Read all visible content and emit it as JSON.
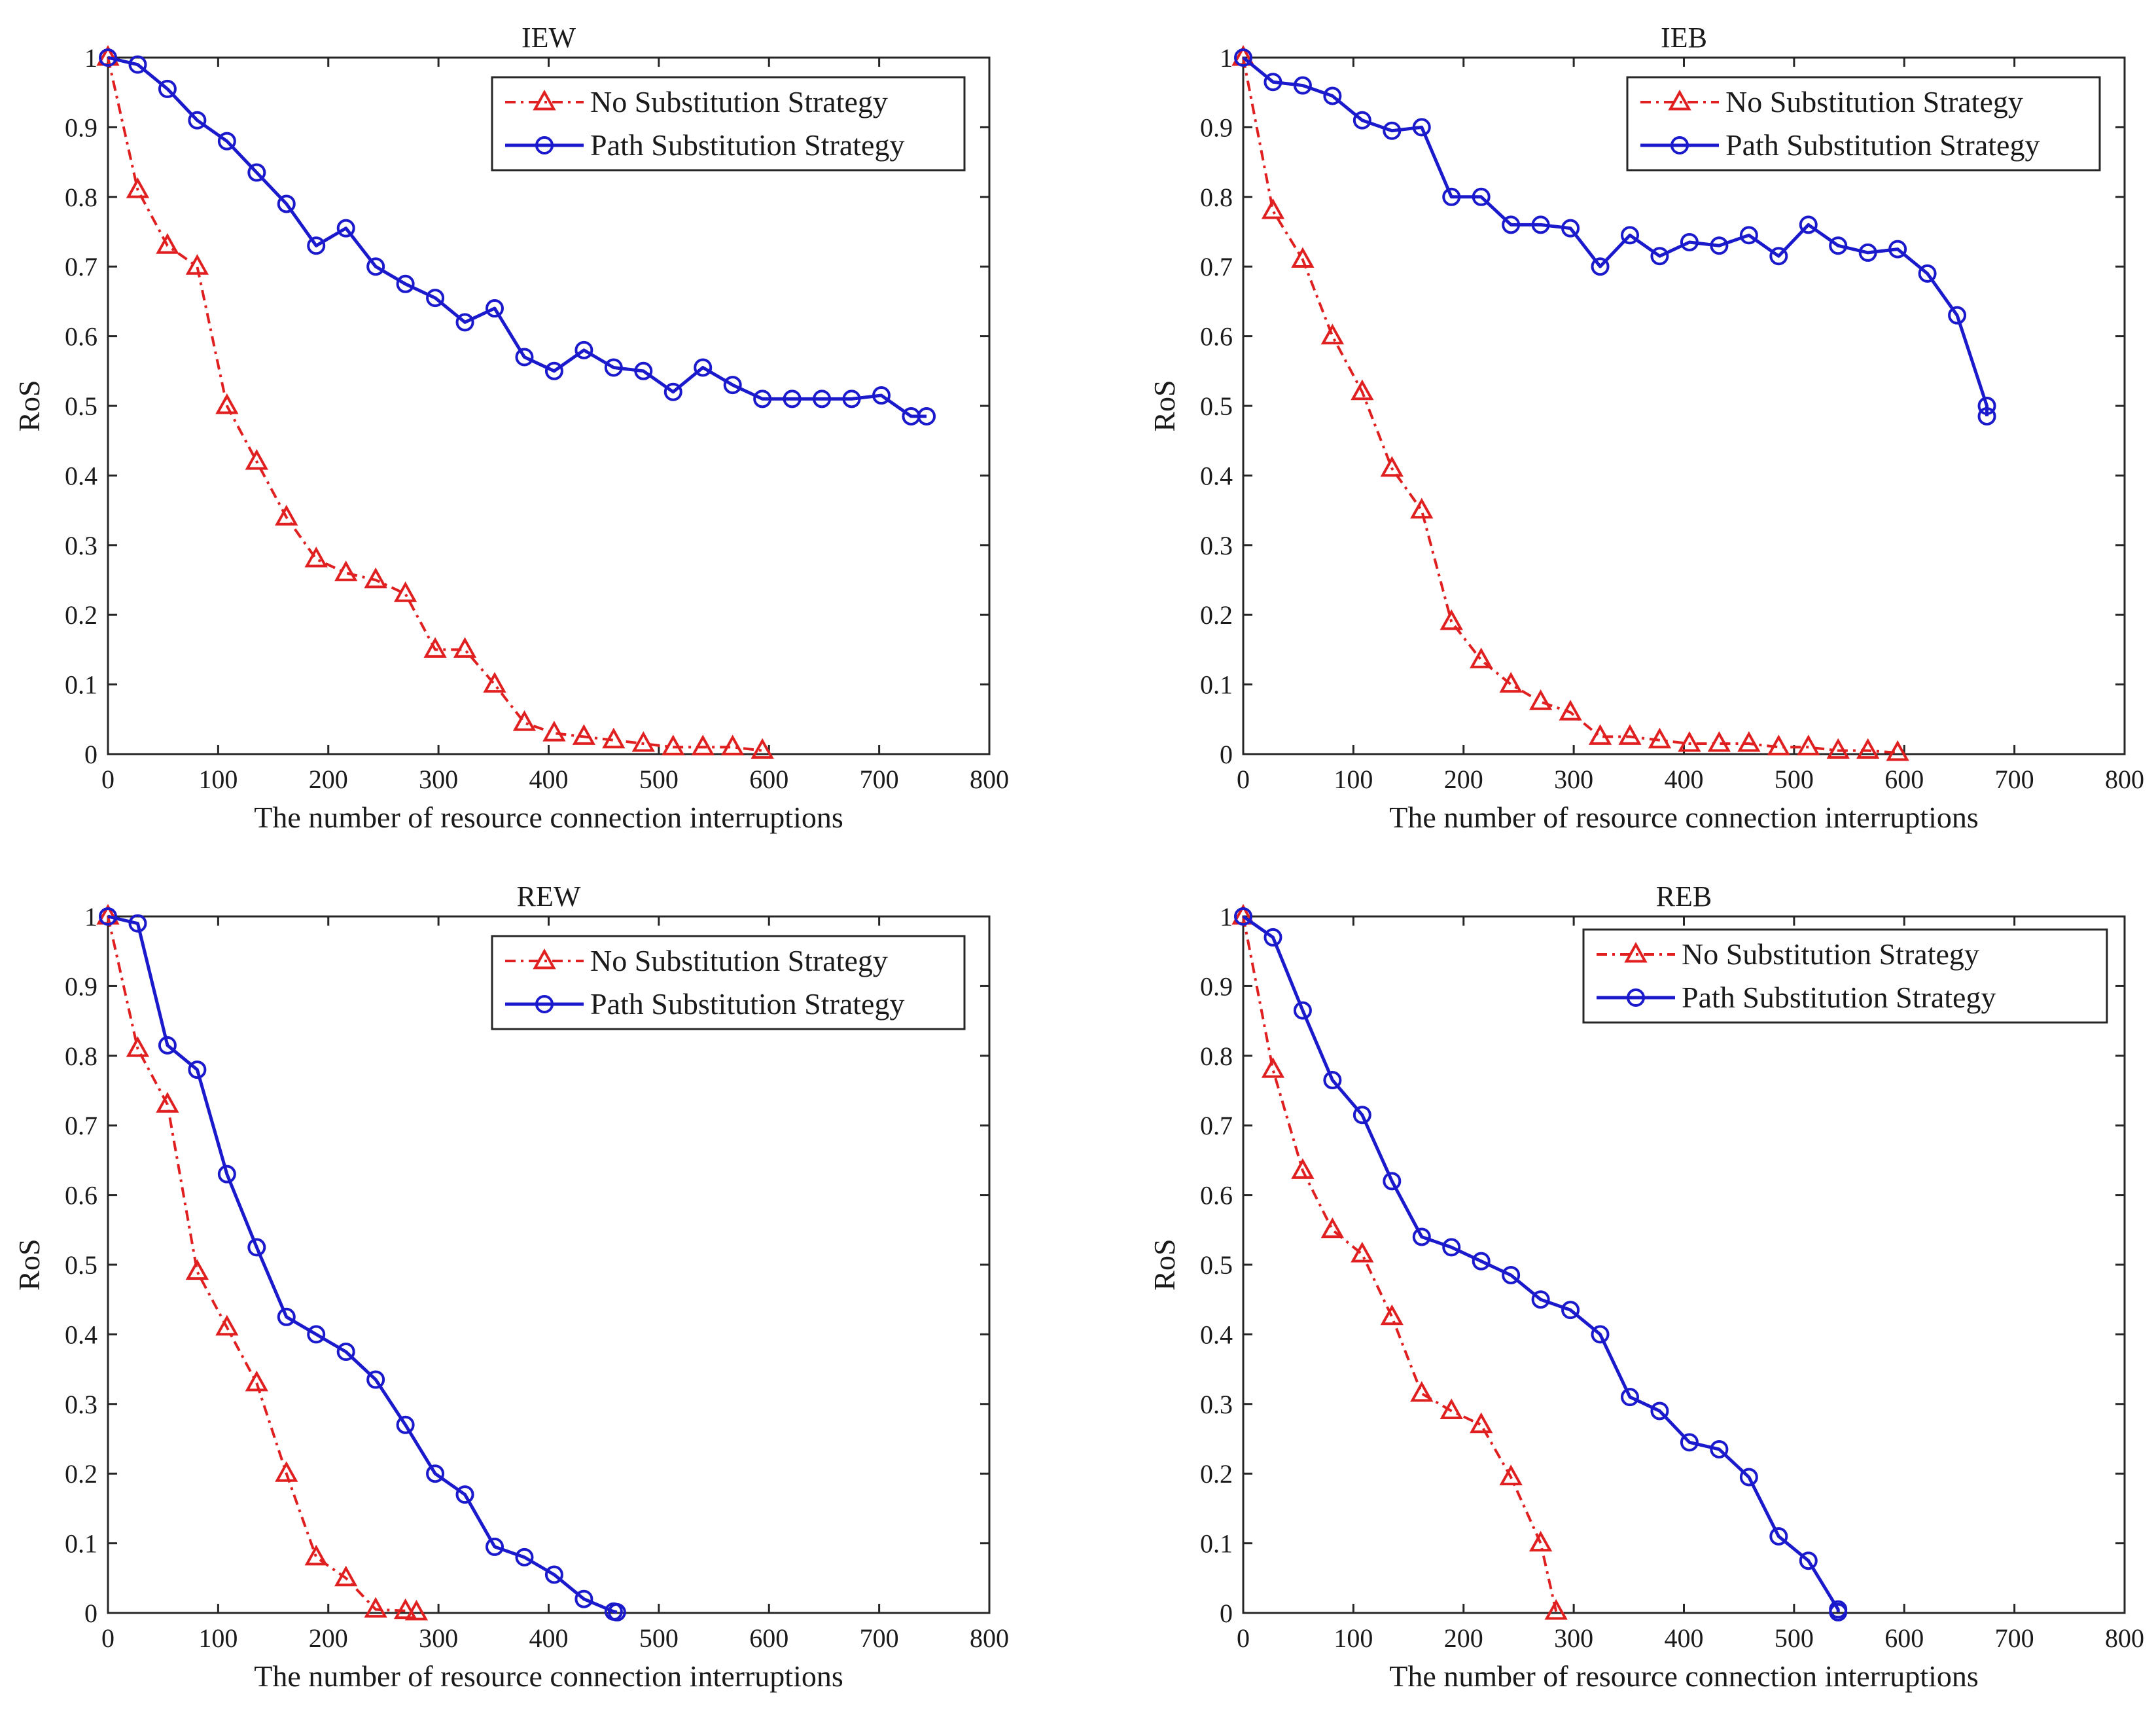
{
  "chart_data": [
    {
      "type": "line",
      "title": "IEW",
      "xlabel": "The number of resource connection interruptions",
      "ylabel": "RoS",
      "xlim": [
        0,
        800
      ],
      "ylim": [
        0,
        1
      ],
      "xticks": [
        0,
        100,
        200,
        300,
        400,
        500,
        600,
        700,
        800
      ],
      "yticks": [
        0,
        0.1,
        0.2,
        0.3,
        0.4,
        0.5,
        0.6,
        0.7,
        0.8,
        0.9,
        1
      ],
      "legend_position": "top-right",
      "series": [
        {
          "name": "No Substitution Strategy",
          "color": "#e02020",
          "marker": "triangle",
          "style": "dash-dot",
          "x": [
            0,
            27,
            54,
            81,
            108,
            135,
            162,
            189,
            216,
            243,
            270,
            297,
            324,
            351,
            378,
            405,
            432,
            459,
            486,
            513,
            540,
            567,
            594
          ],
          "y": [
            1,
            0.81,
            0.73,
            0.7,
            0.5,
            0.42,
            0.34,
            0.28,
            0.26,
            0.25,
            0.23,
            0.15,
            0.15,
            0.1,
            0.045,
            0.03,
            0.025,
            0.02,
            0.015,
            0.01,
            0.01,
            0.01,
            0.005
          ]
        },
        {
          "name": "Path Substitution Strategy",
          "color": "#1a1acc",
          "marker": "circle",
          "style": "solid",
          "x": [
            0,
            27,
            54,
            81,
            108,
            135,
            162,
            189,
            216,
            243,
            270,
            297,
            324,
            351,
            378,
            405,
            432,
            459,
            486,
            513,
            540,
            567,
            594,
            621,
            648,
            675,
            702,
            729,
            743
          ],
          "y": [
            1,
            0.99,
            0.955,
            0.91,
            0.88,
            0.835,
            0.79,
            0.73,
            0.755,
            0.7,
            0.675,
            0.655,
            0.62,
            0.64,
            0.57,
            0.55,
            0.58,
            0.555,
            0.55,
            0.52,
            0.555,
            0.53,
            0.51,
            0.51,
            0.51,
            0.51,
            0.515,
            0.485,
            0.485
          ]
        }
      ]
    },
    {
      "type": "line",
      "title": "IEB",
      "xlabel": "The number of resource connection interruptions",
      "ylabel": "RoS",
      "xlim": [
        0,
        800
      ],
      "ylim": [
        0,
        1
      ],
      "xticks": [
        0,
        100,
        200,
        300,
        400,
        500,
        600,
        700,
        800
      ],
      "yticks": [
        0,
        0.1,
        0.2,
        0.3,
        0.4,
        0.5,
        0.6,
        0.7,
        0.8,
        0.9,
        1
      ],
      "legend_position": "top-right",
      "series": [
        {
          "name": "No Substitution Strategy",
          "color": "#e02020",
          "marker": "triangle",
          "style": "dash-dot",
          "x": [
            0,
            27,
            54,
            81,
            108,
            135,
            162,
            189,
            216,
            243,
            270,
            297,
            324,
            351,
            378,
            405,
            432,
            459,
            486,
            513,
            540,
            567,
            594
          ],
          "y": [
            1,
            0.78,
            0.71,
            0.6,
            0.52,
            0.41,
            0.35,
            0.19,
            0.135,
            0.1,
            0.075,
            0.06,
            0.025,
            0.025,
            0.02,
            0.015,
            0.015,
            0.015,
            0.01,
            0.01,
            0.005,
            0.005,
            0.002
          ]
        },
        {
          "name": "Path Substitution Strategy",
          "color": "#1a1acc",
          "marker": "circle",
          "style": "solid",
          "x": [
            0,
            27,
            54,
            81,
            108,
            135,
            162,
            189,
            216,
            243,
            270,
            297,
            324,
            351,
            378,
            405,
            432,
            459,
            486,
            513,
            540,
            567,
            594,
            621,
            648,
            675,
            675
          ],
          "y": [
            1,
            0.965,
            0.96,
            0.945,
            0.91,
            0.895,
            0.9,
            0.8,
            0.8,
            0.76,
            0.76,
            0.755,
            0.7,
            0.745,
            0.715,
            0.735,
            0.73,
            0.745,
            0.715,
            0.76,
            0.73,
            0.72,
            0.725,
            0.69,
            0.63,
            0.5,
            0.485
          ]
        }
      ]
    },
    {
      "type": "line",
      "title": "REW",
      "xlabel": "The number of resource connection interruptions",
      "ylabel": "RoS",
      "xlim": [
        0,
        800
      ],
      "ylim": [
        0,
        1
      ],
      "xticks": [
        0,
        100,
        200,
        300,
        400,
        500,
        600,
        700,
        800
      ],
      "yticks": [
        0,
        0.1,
        0.2,
        0.3,
        0.4,
        0.5,
        0.6,
        0.7,
        0.8,
        0.9,
        1
      ],
      "legend_position": "top-right",
      "series": [
        {
          "name": "No Substitution Strategy",
          "color": "#e02020",
          "marker": "triangle",
          "style": "dash-dot",
          "x": [
            0,
            27,
            54,
            81,
            108,
            135,
            162,
            189,
            216,
            243,
            270,
            280
          ],
          "y": [
            1,
            0.81,
            0.73,
            0.49,
            0.41,
            0.33,
            0.2,
            0.08,
            0.05,
            0.005,
            0.003,
            0.001
          ]
        },
        {
          "name": "Path Substitution Strategy",
          "color": "#1a1acc",
          "marker": "circle",
          "style": "solid",
          "x": [
            0,
            27,
            54,
            81,
            108,
            135,
            162,
            189,
            216,
            243,
            270,
            297,
            324,
            351,
            378,
            405,
            432,
            459,
            462
          ],
          "y": [
            1,
            0.99,
            0.815,
            0.78,
            0.63,
            0.525,
            0.425,
            0.4,
            0.375,
            0.335,
            0.27,
            0.2,
            0.17,
            0.095,
            0.08,
            0.055,
            0.02,
            0.002,
            0.001
          ]
        }
      ]
    },
    {
      "type": "line",
      "title": "REB",
      "xlabel": "The number of resource connection interruptions",
      "ylabel": "RoS",
      "xlim": [
        0,
        800
      ],
      "ylim": [
        0,
        1
      ],
      "xticks": [
        0,
        100,
        200,
        300,
        400,
        500,
        600,
        700,
        800
      ],
      "yticks": [
        0,
        0.1,
        0.2,
        0.3,
        0.4,
        0.5,
        0.6,
        0.7,
        0.8,
        0.9,
        1
      ],
      "legend_position": "top-right",
      "series": [
        {
          "name": "No Substitution Strategy",
          "color": "#e02020",
          "marker": "triangle",
          "style": "dash-dot",
          "x": [
            0,
            27,
            54,
            81,
            108,
            135,
            162,
            189,
            216,
            243,
            270,
            284
          ],
          "y": [
            1,
            0.78,
            0.635,
            0.55,
            0.515,
            0.425,
            0.315,
            0.29,
            0.27,
            0.195,
            0.1,
            0.002
          ]
        },
        {
          "name": "Path Substitution Strategy",
          "color": "#1a1acc",
          "marker": "circle",
          "style": "solid",
          "x": [
            0,
            27,
            54,
            81,
            108,
            135,
            162,
            189,
            216,
            243,
            270,
            297,
            324,
            351,
            378,
            405,
            432,
            459,
            486,
            513,
            540,
            540
          ],
          "y": [
            1,
            0.97,
            0.865,
            0.765,
            0.715,
            0.62,
            0.54,
            0.525,
            0.505,
            0.485,
            0.45,
            0.435,
            0.4,
            0.31,
            0.29,
            0.245,
            0.235,
            0.195,
            0.11,
            0.075,
            0.005,
            0.001
          ]
        }
      ]
    }
  ]
}
